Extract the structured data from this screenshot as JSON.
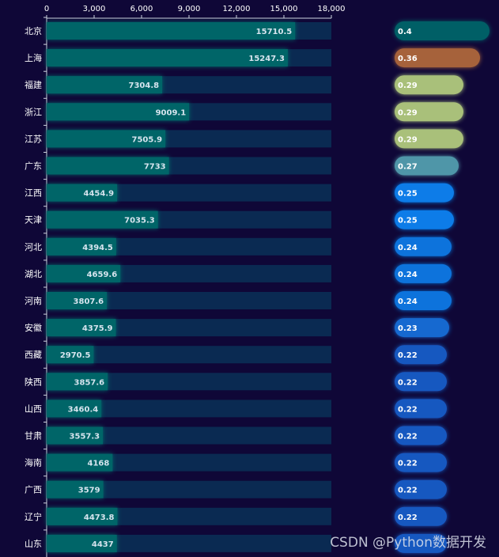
{
  "chart_data": {
    "type": "bar",
    "orientation": "horizontal",
    "categories": [
      "北京",
      "上海",
      "福建",
      "浙江",
      "江苏",
      "广东",
      "江西",
      "天津",
      "河北",
      "湖北",
      "河南",
      "安徽",
      "西藏",
      "陕西",
      "山西",
      "甘肃",
      "海南",
      "广西",
      "辽宁",
      "山东"
    ],
    "values": [
      15710.5,
      15247.3,
      7304.8,
      9009.1,
      7505.9,
      7733,
      4454.9,
      7035.3,
      4394.5,
      4659.6,
      3807.6,
      4375.9,
      2970.5,
      3857.6,
      3460.4,
      3557.3,
      4168,
      3579,
      4473.8,
      4437
    ],
    "value_labels": [
      "15710.5",
      "15247.3",
      "7304.8",
      "9009.1",
      "7505.9",
      "7733",
      "4454.9",
      "7035.3",
      "4394.5",
      "4659.6",
      "3807.6",
      "4375.9",
      "2970.5",
      "3857.6",
      "3460.4",
      "3557.3",
      "4168",
      "3579",
      "4473.8",
      "4437"
    ],
    "xlim": [
      0,
      18000
    ],
    "x_ticks": [
      0,
      3000,
      6000,
      9000,
      12000,
      15000,
      18000
    ],
    "x_tick_labels": [
      "0",
      "3,000",
      "6,000",
      "9,000",
      "12,000",
      "15,000",
      "18,000"
    ],
    "ratio_values": [
      0.4,
      0.36,
      0.29,
      0.29,
      0.29,
      0.27,
      0.25,
      0.25,
      0.24,
      0.24,
      0.24,
      0.23,
      0.22,
      0.22,
      0.22,
      0.22,
      0.22,
      0.22,
      0.22,
      0.22
    ],
    "ratio_labels": [
      "0.4",
      "0.36",
      "0.29",
      "0.29",
      "0.29",
      "0.27",
      "0.25",
      "0.25",
      "0.24",
      "0.24",
      "0.24",
      "0.23",
      "0.22",
      "0.22",
      "0.22",
      "0.22",
      "0.22",
      "0.22",
      "0.22",
      ""
    ],
    "ratio_colors": [
      "#005f66",
      "#a6623a",
      "#a9c07a",
      "#a9c07a",
      "#a9c07a",
      "#4f96a8",
      "#0a7be8",
      "#0a7be8",
      "#1173dc",
      "#1173dc",
      "#1173dc",
      "#1569d0",
      "#1858c0",
      "#1858c0",
      "#1858c0",
      "#1858c0",
      "#1858c0",
      "#1858c0",
      "#1858c0",
      "#1858c0"
    ],
    "colors": {
      "background": "#0f0737",
      "bar_fill": "#006567",
      "bar_track": "#0a2a52",
      "axis": "#cfd6e0"
    },
    "grid": false
  },
  "watermark": "CSDN @Python数据开发"
}
